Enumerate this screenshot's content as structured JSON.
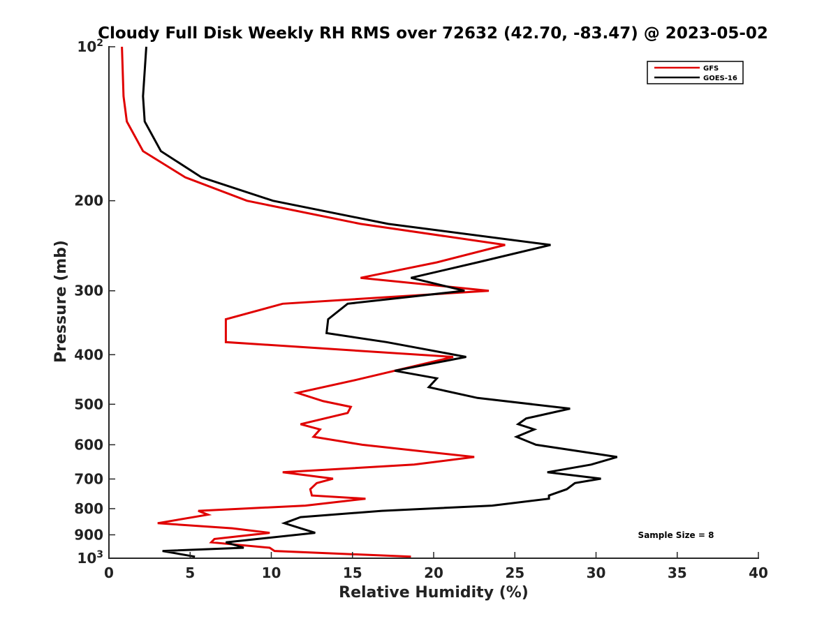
{
  "chart_data": {
    "type": "line",
    "title": "Cloudy Full Disk Weekly RH RMS over 72632 (42.70, -83.47) @ 2023-05-02",
    "xlabel": "Relative Humidity (%)",
    "ylabel": "Pressure (mb)",
    "xlim": [
      0,
      40
    ],
    "ylim": [
      100,
      1000
    ],
    "yscale": "log",
    "y_reversed": true,
    "x_ticks": [
      "0",
      "5",
      "10",
      "15",
      "20",
      "25",
      "30",
      "35",
      "40"
    ],
    "y_ticks": [
      {
        "value": 100,
        "base": "10",
        "exp": "2"
      },
      {
        "value": 200,
        "label": "200"
      },
      {
        "value": 300,
        "label": "300"
      },
      {
        "value": 400,
        "label": "400"
      },
      {
        "value": 500,
        "label": "500"
      },
      {
        "value": 600,
        "label": "600"
      },
      {
        "value": 700,
        "label": "700"
      },
      {
        "value": 800,
        "label": "800"
      },
      {
        "value": 900,
        "label": "900"
      },
      {
        "value": 1000,
        "base": "10",
        "exp": "3"
      }
    ],
    "legend": {
      "position": "top-right",
      "entries": [
        "GFS",
        "GOES-16"
      ]
    },
    "annotation": "Sample Size = 8",
    "series": [
      {
        "name": "GFS",
        "color": "#e00000",
        "points": [
          [
            0.8,
            100
          ],
          [
            0.9,
            125
          ],
          [
            1.1,
            140
          ],
          [
            2.1,
            160
          ],
          [
            4.7,
            180
          ],
          [
            8.5,
            200
          ],
          [
            15.5,
            222
          ],
          [
            24.4,
            244
          ],
          [
            20.2,
            264
          ],
          [
            15.5,
            283
          ],
          [
            23.4,
            300
          ],
          [
            10.7,
            318
          ],
          [
            7.2,
            341
          ],
          [
            7.2,
            363
          ],
          [
            7.2,
            378
          ],
          [
            21.2,
            404
          ],
          [
            15.1,
            449
          ],
          [
            11.6,
            475
          ],
          [
            13.2,
            493
          ],
          [
            14.9,
            506
          ],
          [
            14.7,
            520
          ],
          [
            11.8,
            547
          ],
          [
            13.0,
            560
          ],
          [
            12.6,
            579
          ],
          [
            15.6,
            600
          ],
          [
            22.5,
            634
          ],
          [
            18.8,
            656
          ],
          [
            10.7,
            679
          ],
          [
            13.8,
            699
          ],
          [
            12.8,
            713
          ],
          [
            12.4,
            733
          ],
          [
            12.5,
            754
          ],
          [
            15.8,
            765
          ],
          [
            12.1,
            789
          ],
          [
            5.5,
            808
          ],
          [
            6.1,
            822
          ],
          [
            3.0,
            854
          ],
          [
            7.6,
            874
          ],
          [
            9.9,
            892
          ],
          [
            6.5,
            917
          ],
          [
            6.3,
            931
          ],
          [
            9.9,
            954
          ],
          [
            10.2,
            968
          ],
          [
            18.6,
            993
          ]
        ]
      },
      {
        "name": "GOES-16",
        "color": "#000000",
        "points": [
          [
            2.3,
            100
          ],
          [
            2.1,
            125
          ],
          [
            2.2,
            140
          ],
          [
            3.2,
            160
          ],
          [
            5.7,
            180
          ],
          [
            10.1,
            200
          ],
          [
            17.2,
            222
          ],
          [
            27.2,
            244
          ],
          [
            22.7,
            264
          ],
          [
            18.6,
            283
          ],
          [
            21.9,
            300
          ],
          [
            14.7,
            318
          ],
          [
            13.5,
            341
          ],
          [
            13.4,
            363
          ],
          [
            17.1,
            378
          ],
          [
            22.0,
            404
          ],
          [
            17.6,
            430
          ],
          [
            20.2,
            445
          ],
          [
            19.7,
            463
          ],
          [
            22.7,
            486
          ],
          [
            28.4,
            510
          ],
          [
            25.7,
            533
          ],
          [
            25.2,
            547
          ],
          [
            26.2,
            560
          ],
          [
            25.1,
            579
          ],
          [
            26.3,
            600
          ],
          [
            31.3,
            634
          ],
          [
            29.7,
            656
          ],
          [
            27.0,
            679
          ],
          [
            30.3,
            699
          ],
          [
            28.7,
            713
          ],
          [
            28.2,
            733
          ],
          [
            27.1,
            754
          ],
          [
            27.1,
            765
          ],
          [
            23.6,
            789
          ],
          [
            16.8,
            808
          ],
          [
            11.8,
            831
          ],
          [
            10.8,
            854
          ],
          [
            12.7,
            892
          ],
          [
            7.2,
            931
          ],
          [
            8.3,
            954
          ],
          [
            3.3,
            968
          ],
          [
            5.3,
            993
          ]
        ]
      }
    ]
  }
}
